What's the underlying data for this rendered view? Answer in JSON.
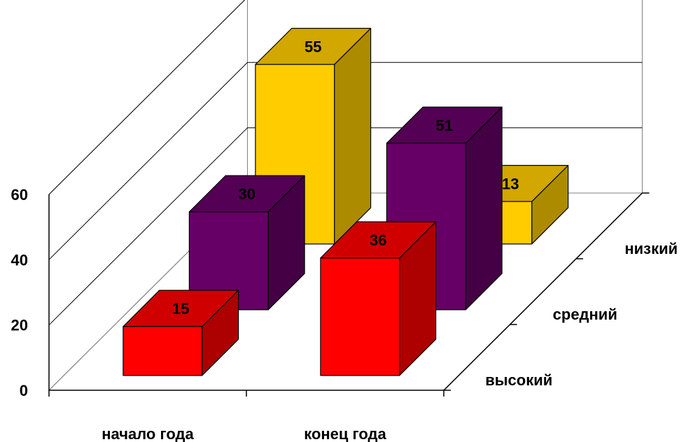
{
  "chart_data": {
    "type": "bar",
    "subtype": "3d-bar",
    "title": "",
    "xlabel": "",
    "ylabel": "",
    "ylim": [
      0,
      60
    ],
    "y_ticks": [
      "0",
      "20",
      "40",
      "60"
    ],
    "grid": true,
    "legend": "none",
    "categories": [
      "начало года",
      "конец года"
    ],
    "series": [
      {
        "name": "высокий",
        "color": "#ff0000",
        "values": [
          15,
          36
        ]
      },
      {
        "name": "средний",
        "color": "#660066",
        "values": [
          30,
          51
        ]
      },
      {
        "name": "низкий",
        "color": "#ffcc00",
        "values": [
          55,
          13
        ]
      }
    ]
  }
}
